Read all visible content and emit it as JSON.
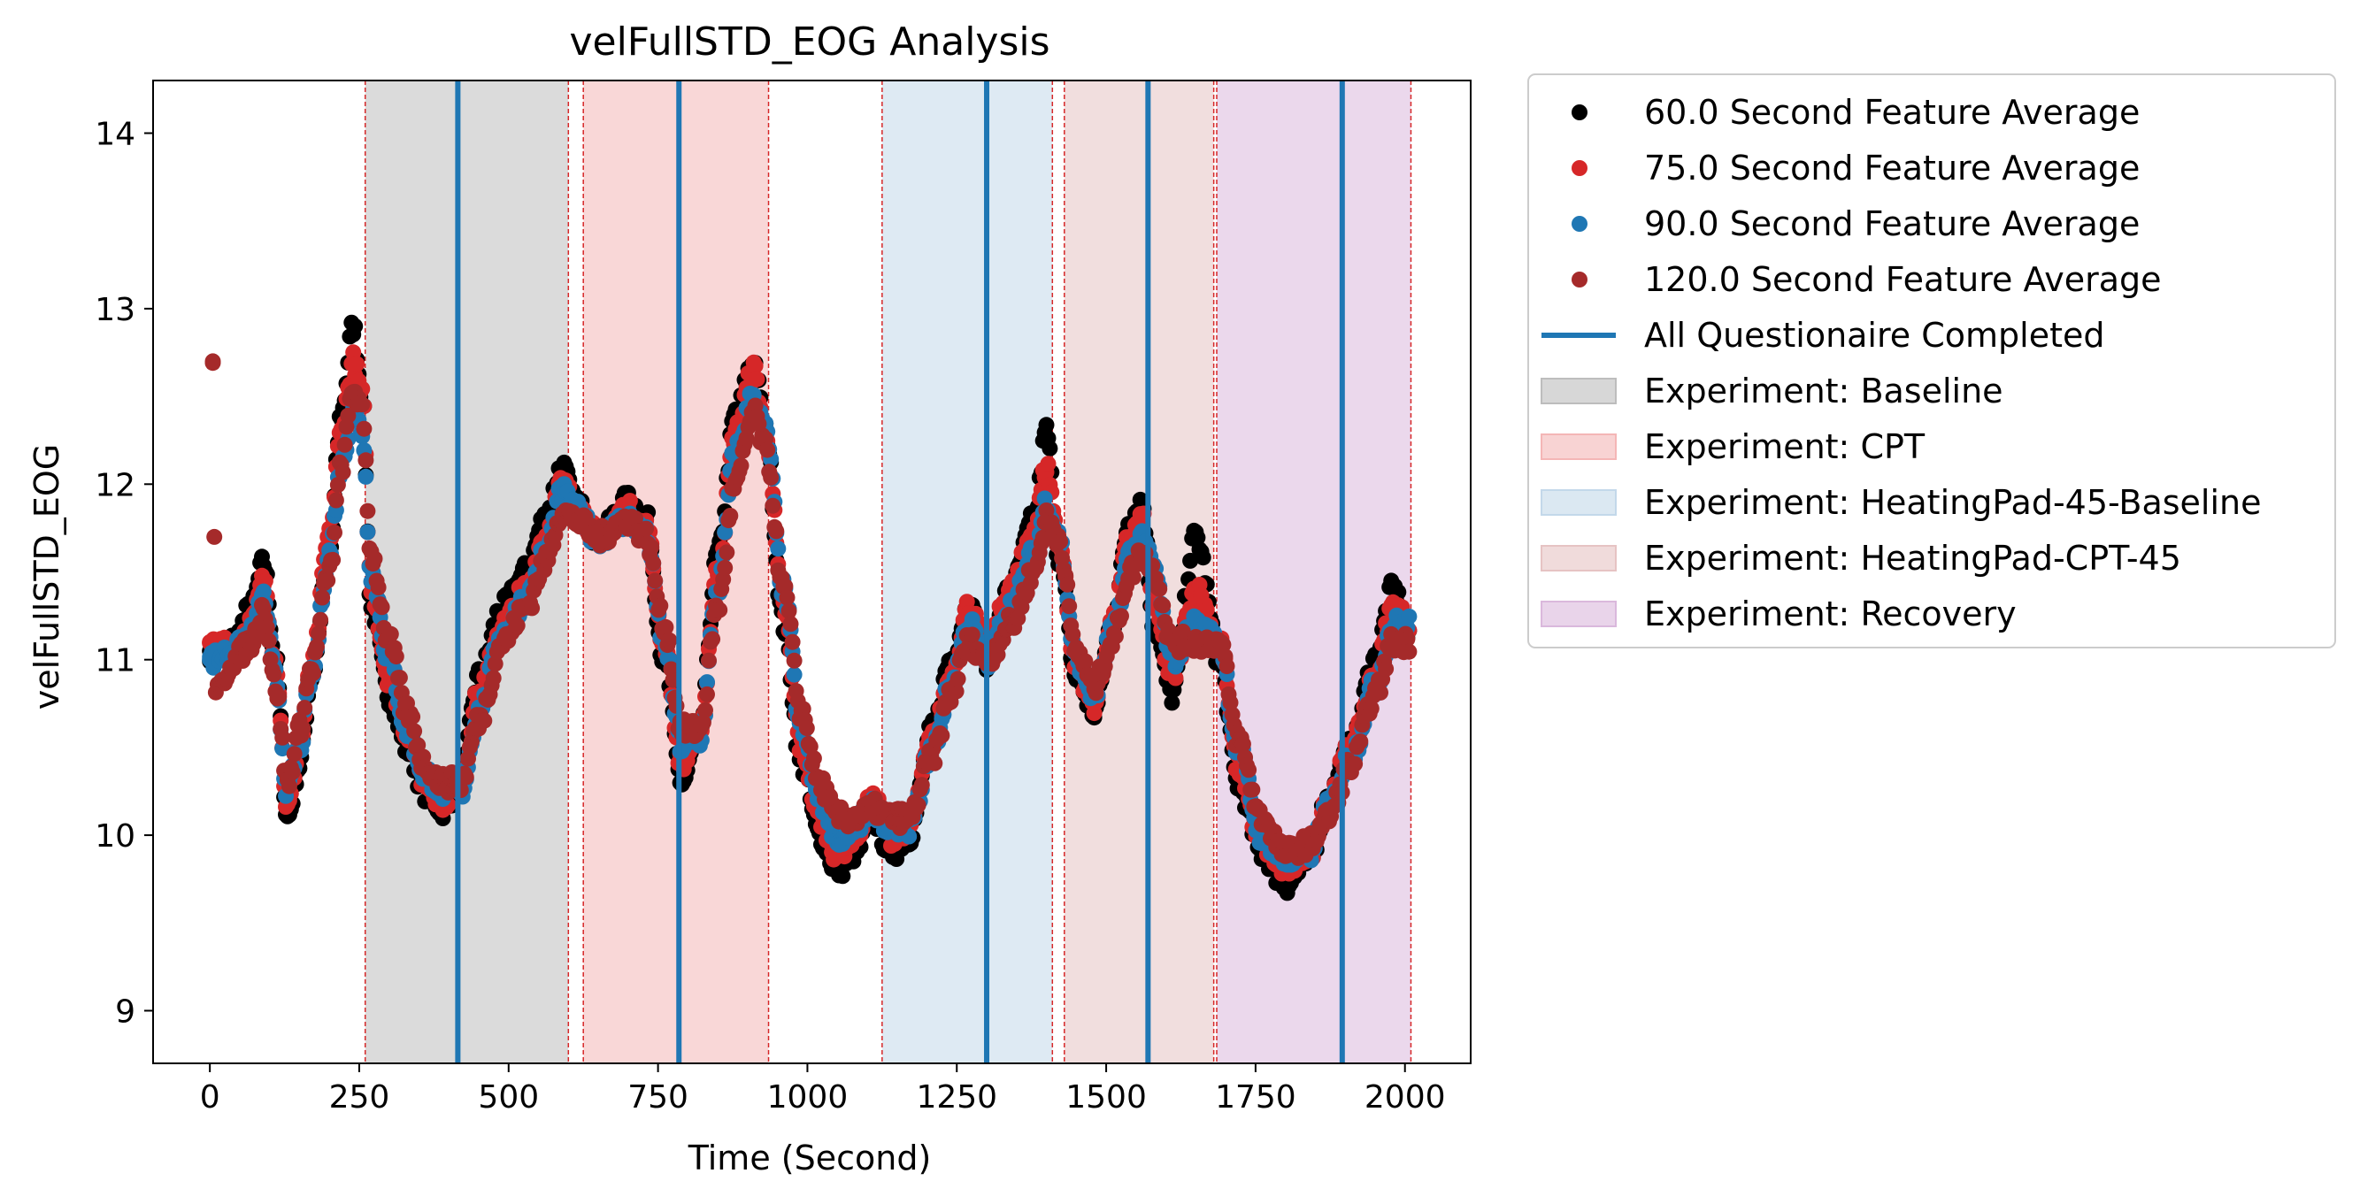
{
  "chart_data": {
    "type": "scatter",
    "title": "velFullSTD_EOG Analysis",
    "xlabel": "Time (Second)",
    "ylabel": "velFullSTD_EOG",
    "xlim": [
      -95,
      2110
    ],
    "ylim": [
      8.7,
      14.3
    ],
    "xticks": [
      0,
      250,
      500,
      750,
      1000,
      1250,
      1500,
      1750,
      2000
    ],
    "yticks": [
      9,
      10,
      11,
      12,
      13,
      14
    ],
    "grid": false,
    "legend_position": "outside-right-top",
    "series": [
      {
        "name": "60.0 Second Feature Average",
        "color": "#000000",
        "anchors": [
          [
            0,
            11.05
          ],
          [
            40,
            11.1
          ],
          [
            70,
            11.3
          ],
          [
            90,
            11.55
          ],
          [
            110,
            11.0
          ],
          [
            130,
            10.1
          ],
          [
            150,
            10.4
          ],
          [
            170,
            10.9
          ],
          [
            200,
            11.6
          ],
          [
            220,
            12.4
          ],
          [
            240,
            12.9
          ],
          [
            255,
            12.5
          ],
          [
            270,
            11.3
          ],
          [
            300,
            10.8
          ],
          [
            330,
            10.5
          ],
          [
            360,
            10.25
          ],
          [
            390,
            10.15
          ],
          [
            420,
            10.3
          ],
          [
            450,
            10.9
          ],
          [
            490,
            11.3
          ],
          [
            530,
            11.5
          ],
          [
            560,
            11.8
          ],
          [
            590,
            12.1
          ],
          [
            610,
            11.9
          ],
          [
            650,
            11.7
          ],
          [
            700,
            11.9
          ],
          [
            730,
            11.8
          ],
          [
            760,
            11.0
          ],
          [
            790,
            10.3
          ],
          [
            820,
            10.6
          ],
          [
            850,
            11.6
          ],
          [
            880,
            12.4
          ],
          [
            910,
            12.7
          ],
          [
            930,
            12.3
          ],
          [
            960,
            11.2
          ],
          [
            990,
            10.4
          ],
          [
            1020,
            10.0
          ],
          [
            1050,
            9.8
          ],
          [
            1080,
            9.9
          ],
          [
            1110,
            10.1
          ],
          [
            1140,
            9.9
          ],
          [
            1170,
            10.0
          ],
          [
            1210,
            10.6
          ],
          [
            1240,
            11.0
          ],
          [
            1270,
            11.3
          ],
          [
            1300,
            11.0
          ],
          [
            1340,
            11.4
          ],
          [
            1380,
            11.8
          ],
          [
            1400,
            12.3
          ],
          [
            1420,
            11.6
          ],
          [
            1450,
            10.9
          ],
          [
            1480,
            10.7
          ],
          [
            1510,
            11.2
          ],
          [
            1540,
            11.8
          ],
          [
            1560,
            11.9
          ],
          [
            1580,
            11.2
          ],
          [
            1610,
            10.8
          ],
          [
            1650,
            11.7
          ],
          [
            1690,
            11.0
          ],
          [
            1720,
            10.3
          ],
          [
            1760,
            9.9
          ],
          [
            1800,
            9.72
          ],
          [
            1840,
            9.85
          ],
          [
            1870,
            10.2
          ],
          [
            1910,
            10.5
          ],
          [
            1950,
            11.0
          ],
          [
            1980,
            11.4
          ],
          [
            2010,
            11.1
          ]
        ]
      },
      {
        "name": "75.0 Second Feature Average",
        "color": "#d62728",
        "anchors": [
          [
            0,
            11.1
          ],
          [
            40,
            11.05
          ],
          [
            70,
            11.2
          ],
          [
            90,
            11.45
          ],
          [
            110,
            11.0
          ],
          [
            130,
            10.15
          ],
          [
            150,
            10.5
          ],
          [
            170,
            10.95
          ],
          [
            200,
            11.7
          ],
          [
            220,
            12.3
          ],
          [
            240,
            12.7
          ],
          [
            255,
            12.5
          ],
          [
            270,
            11.4
          ],
          [
            300,
            10.9
          ],
          [
            330,
            10.6
          ],
          [
            360,
            10.3
          ],
          [
            390,
            10.2
          ],
          [
            420,
            10.3
          ],
          [
            450,
            10.8
          ],
          [
            490,
            11.2
          ],
          [
            530,
            11.4
          ],
          [
            560,
            11.7
          ],
          [
            590,
            12.0
          ],
          [
            610,
            11.9
          ],
          [
            650,
            11.7
          ],
          [
            700,
            11.85
          ],
          [
            730,
            11.75
          ],
          [
            760,
            11.1
          ],
          [
            790,
            10.4
          ],
          [
            820,
            10.6
          ],
          [
            850,
            11.5
          ],
          [
            880,
            12.3
          ],
          [
            910,
            12.65
          ],
          [
            930,
            12.3
          ],
          [
            960,
            11.3
          ],
          [
            990,
            10.5
          ],
          [
            1020,
            10.1
          ],
          [
            1050,
            9.9
          ],
          [
            1080,
            10.0
          ],
          [
            1110,
            10.2
          ],
          [
            1140,
            10.0
          ],
          [
            1170,
            10.05
          ],
          [
            1210,
            10.55
          ],
          [
            1240,
            10.9
          ],
          [
            1270,
            11.3
          ],
          [
            1300,
            11.05
          ],
          [
            1340,
            11.4
          ],
          [
            1380,
            11.75
          ],
          [
            1400,
            12.1
          ],
          [
            1420,
            11.7
          ],
          [
            1450,
            10.95
          ],
          [
            1480,
            10.75
          ],
          [
            1510,
            11.2
          ],
          [
            1540,
            11.7
          ],
          [
            1560,
            11.8
          ],
          [
            1580,
            11.3
          ],
          [
            1610,
            10.9
          ],
          [
            1650,
            11.4
          ],
          [
            1690,
            11.1
          ],
          [
            1720,
            10.4
          ],
          [
            1760,
            9.95
          ],
          [
            1800,
            9.8
          ],
          [
            1840,
            9.9
          ],
          [
            1870,
            10.2
          ],
          [
            1910,
            10.5
          ],
          [
            1950,
            10.9
          ],
          [
            1980,
            11.3
          ],
          [
            2010,
            11.2
          ]
        ]
      },
      {
        "name": "90.0 Second Feature Average",
        "color": "#1f77b4",
        "anchors": [
          [
            0,
            11.0
          ],
          [
            40,
            11.05
          ],
          [
            70,
            11.15
          ],
          [
            90,
            11.35
          ],
          [
            110,
            10.9
          ],
          [
            130,
            10.25
          ],
          [
            150,
            10.5
          ],
          [
            170,
            10.9
          ],
          [
            200,
            11.6
          ],
          [
            220,
            12.1
          ],
          [
            240,
            12.45
          ],
          [
            255,
            12.3
          ],
          [
            270,
            11.5
          ],
          [
            300,
            11.0
          ],
          [
            330,
            10.6
          ],
          [
            360,
            10.35
          ],
          [
            390,
            10.25
          ],
          [
            420,
            10.25
          ],
          [
            450,
            10.7
          ],
          [
            490,
            11.15
          ],
          [
            530,
            11.35
          ],
          [
            560,
            11.6
          ],
          [
            590,
            11.95
          ],
          [
            610,
            11.85
          ],
          [
            650,
            11.7
          ],
          [
            700,
            11.8
          ],
          [
            730,
            11.7
          ],
          [
            760,
            11.1
          ],
          [
            790,
            10.5
          ],
          [
            820,
            10.55
          ],
          [
            850,
            11.4
          ],
          [
            880,
            12.2
          ],
          [
            910,
            12.5
          ],
          [
            930,
            12.3
          ],
          [
            960,
            11.4
          ],
          [
            990,
            10.6
          ],
          [
            1020,
            10.2
          ],
          [
            1050,
            10.0
          ],
          [
            1080,
            10.05
          ],
          [
            1110,
            10.15
          ],
          [
            1140,
            10.05
          ],
          [
            1170,
            10.05
          ],
          [
            1210,
            10.5
          ],
          [
            1240,
            10.85
          ],
          [
            1270,
            11.2
          ],
          [
            1300,
            11.0
          ],
          [
            1340,
            11.3
          ],
          [
            1380,
            11.6
          ],
          [
            1400,
            11.9
          ],
          [
            1420,
            11.7
          ],
          [
            1450,
            11.0
          ],
          [
            1480,
            10.8
          ],
          [
            1510,
            11.15
          ],
          [
            1540,
            11.6
          ],
          [
            1560,
            11.7
          ],
          [
            1580,
            11.5
          ],
          [
            1610,
            11.0
          ],
          [
            1650,
            11.2
          ],
          [
            1690,
            11.1
          ],
          [
            1720,
            10.5
          ],
          [
            1760,
            10.0
          ],
          [
            1800,
            9.85
          ],
          [
            1840,
            9.9
          ],
          [
            1870,
            10.15
          ],
          [
            1910,
            10.45
          ],
          [
            1950,
            10.85
          ],
          [
            1980,
            11.2
          ],
          [
            2010,
            11.2
          ]
        ]
      },
      {
        "name": "120.0 Second Feature Average",
        "color": "#a52a2a",
        "anchors": [
          [
            5,
            12.7
          ],
          [
            10,
            10.8
          ],
          [
            40,
            11.0
          ],
          [
            70,
            11.1
          ],
          [
            90,
            11.3
          ],
          [
            110,
            10.85
          ],
          [
            130,
            10.3
          ],
          [
            150,
            10.6
          ],
          [
            170,
            10.95
          ],
          [
            200,
            11.5
          ],
          [
            220,
            12.1
          ],
          [
            240,
            12.55
          ],
          [
            255,
            12.4
          ],
          [
            270,
            11.6
          ],
          [
            300,
            11.1
          ],
          [
            330,
            10.7
          ],
          [
            360,
            10.4
          ],
          [
            390,
            10.3
          ],
          [
            420,
            10.3
          ],
          [
            450,
            10.65
          ],
          [
            490,
            11.1
          ],
          [
            530,
            11.3
          ],
          [
            560,
            11.55
          ],
          [
            590,
            11.85
          ],
          [
            610,
            11.8
          ],
          [
            650,
            11.7
          ],
          [
            700,
            11.8
          ],
          [
            730,
            11.7
          ],
          [
            760,
            11.2
          ],
          [
            790,
            10.6
          ],
          [
            820,
            10.6
          ],
          [
            850,
            11.3
          ],
          [
            880,
            12.0
          ],
          [
            910,
            12.4
          ],
          [
            930,
            12.2
          ],
          [
            960,
            11.4
          ],
          [
            990,
            10.7
          ],
          [
            1020,
            10.3
          ],
          [
            1050,
            10.1
          ],
          [
            1080,
            10.1
          ],
          [
            1110,
            10.15
          ],
          [
            1140,
            10.1
          ],
          [
            1170,
            10.1
          ],
          [
            1210,
            10.45
          ],
          [
            1240,
            10.8
          ],
          [
            1270,
            11.1
          ],
          [
            1300,
            11.0
          ],
          [
            1340,
            11.2
          ],
          [
            1380,
            11.5
          ],
          [
            1400,
            11.8
          ],
          [
            1420,
            11.7
          ],
          [
            1450,
            11.05
          ],
          [
            1480,
            10.85
          ],
          [
            1510,
            11.1
          ],
          [
            1540,
            11.5
          ],
          [
            1560,
            11.6
          ],
          [
            1580,
            11.5
          ],
          [
            1610,
            11.1
          ],
          [
            1650,
            11.1
          ],
          [
            1690,
            11.1
          ],
          [
            1720,
            10.55
          ],
          [
            1760,
            10.1
          ],
          [
            1800,
            9.9
          ],
          [
            1840,
            9.95
          ],
          [
            1870,
            10.1
          ],
          [
            1910,
            10.4
          ],
          [
            1950,
            10.8
          ],
          [
            1980,
            11.1
          ],
          [
            2010,
            11.1
          ]
        ]
      }
    ],
    "questionnaire_completed": {
      "name": "All Questionaire Completed",
      "color": "#1f77b4",
      "x": [
        415,
        785,
        1300,
        1570,
        1895
      ]
    },
    "experiments": [
      {
        "name": "Experiment: Baseline",
        "color": "#bdbdbd",
        "ranges": [
          [
            260,
            600
          ]
        ]
      },
      {
        "name": "Experiment: CPT",
        "color": "#f4b6b6",
        "ranges": [
          [
            625,
            935
          ]
        ]
      },
      {
        "name": "Experiment: HeatingPad-45-Baseline",
        "color": "#c3d8ea",
        "ranges": [
          [
            1125,
            1410
          ]
        ]
      },
      {
        "name": "Experiment: HeatingPad-CPT-45",
        "color": "#e6c3c3",
        "ranges": [
          [
            1430,
            1680
          ]
        ]
      },
      {
        "name": "Experiment: Recovery",
        "color": "#dab8dc",
        "ranges": [
          [
            1685,
            2010
          ]
        ]
      }
    ],
    "boundary_lines_x": [
      260,
      600,
      625,
      935,
      1125,
      1410,
      1430,
      1680,
      1685,
      2010
    ],
    "boundary_line_color": "#d62728"
  }
}
